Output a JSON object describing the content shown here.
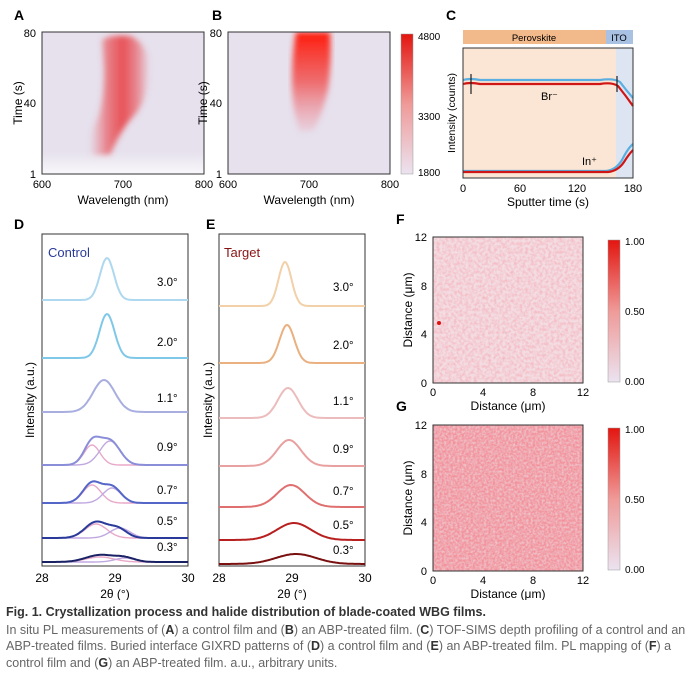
{
  "figure": {
    "panelA": {
      "letter": "A",
      "ylabel": "Time (s)",
      "xlabel": "Wavelength (nm)",
      "yticks": [
        "80",
        "40",
        "1"
      ],
      "xticks": [
        "600",
        "700",
        "800"
      ]
    },
    "panelB": {
      "letter": "B",
      "ylabel": "Time (s)",
      "xlabel": "Wavelength (nm)",
      "yticks": [
        "80",
        "40",
        "1"
      ],
      "xticks": [
        "600",
        "700",
        "800"
      ],
      "colorbar": {
        "ticks": [
          "4800",
          "3300",
          "1800"
        ],
        "colors": [
          "#e8e2ee",
          "#e3150f"
        ]
      }
    },
    "panelC": {
      "letter": "C",
      "ylabel": "Intensity (counts)",
      "xlabel": "Sputter time (s)",
      "xticks": [
        "0",
        "60",
        "120",
        "180"
      ],
      "layer1": "Perovskite",
      "layer2": "ITO",
      "label_br": "Br⁻",
      "label_in": "In⁺",
      "colors": {
        "perovskite": "#f2b98a",
        "ito": "#a9c1e3",
        "control": "#5aaee0",
        "target": "#d01515"
      }
    },
    "panelD": {
      "letter": "D",
      "title": "Control",
      "ylabel": "Intensity (a.u.)",
      "xlabel": "2θ (°)",
      "xticks": [
        "28",
        "29",
        "30"
      ],
      "angles": [
        "3.0°",
        "2.0°",
        "1.1°",
        "0.9°",
        "0.7°",
        "0.5°",
        "0.3°"
      ],
      "colors": [
        "#aed8ef",
        "#80c8e8",
        "#a8aee0",
        "#8a8ed8",
        "#5466c8",
        "#2a3a9a",
        "#1a2266"
      ]
    },
    "panelE": {
      "letter": "E",
      "title": "Target",
      "ylabel": "Intensity (a.u.)",
      "xlabel": "2θ (°)",
      "xticks": [
        "28",
        "29",
        "30"
      ],
      "angles": [
        "3.0°",
        "2.0°",
        "1.1°",
        "0.9°",
        "0.7°",
        "0.5°",
        "0.3°"
      ],
      "colors": [
        "#f2d0a8",
        "#eab080",
        "#ecbcbc",
        "#e8a0a0",
        "#e07070",
        "#b82020",
        "#7a1010"
      ]
    },
    "panelF": {
      "letter": "F",
      "ylabel": "Distance (μm)",
      "xlabel": "Distance (μm)",
      "xticks": [
        "0",
        "4",
        "8",
        "12"
      ],
      "yticks": [
        "12",
        "8",
        "4",
        "0"
      ],
      "colorbar": {
        "ticks": [
          "1.00",
          "0.50",
          "0.00"
        ]
      }
    },
    "panelG": {
      "letter": "G",
      "ylabel": "Distance (μm)",
      "xlabel": "Distance (μm)",
      "xticks": [
        "0",
        "4",
        "8",
        "12"
      ],
      "yticks": [
        "12",
        "8",
        "4",
        "0"
      ],
      "colorbar": {
        "ticks": [
          "1.00",
          "0.50",
          "0.00"
        ]
      }
    }
  },
  "caption": {
    "title": "Fig. 1. Crystallization process and halide distribution of blade-coated WBG films.",
    "t1": "In situ PL measurements of (",
    "A": "A",
    "t2": ") a control film and (",
    "B": "B",
    "t3": ") an ABP-treated film. (",
    "C": "C",
    "t4": ") TOF-SIMS depth profiling of a control and an ABP-treated films. Buried interface GIXRD patterns of (",
    "D": "D",
    "t5": ") a control film and (",
    "E": "E",
    "t6": ") an ABP-treated film. PL mapping of (",
    "F": "F",
    "t7": ") a control film and (",
    "G": "G",
    "t8": ") an ABP-treated film. a.u., arbitrary units."
  }
}
